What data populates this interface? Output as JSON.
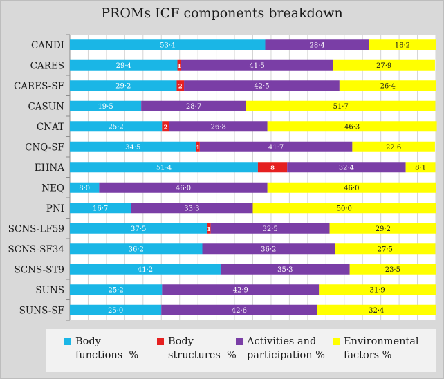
{
  "chart_data": {
    "type": "bar",
    "stacked": true,
    "orientation": "horizontal",
    "title": "PROMs ICF components breakdown",
    "xlim": [
      0,
      100
    ],
    "grid": true,
    "legend_position": "bottom",
    "categories": [
      "CANDI",
      "CARES",
      "CARES-SF",
      "CASUN",
      "CNAT",
      "CNQ-SF",
      "EHNA",
      "NEQ",
      "PNI",
      "SCNS-LF59",
      "SCNS-SF34",
      "SCNS-ST9",
      "SUNS",
      "SUNS-SF"
    ],
    "series": [
      {
        "name": "Body functions %",
        "color": "#1ab6e6",
        "values": [
          53.4,
          29.4,
          29.2,
          19.5,
          25.2,
          34.5,
          51.4,
          8.0,
          16.7,
          37.5,
          36.2,
          41.2,
          25.2,
          25.0
        ],
        "labels": [
          "53·4",
          "29·4",
          "29·2",
          "19·5",
          "25·2",
          "34·5",
          "51·4",
          "8·0",
          "16·7",
          "37·5",
          "36·2",
          "41·2",
          "25·2",
          "25·0"
        ]
      },
      {
        "name": "Body structures %",
        "color": "#e52020",
        "values": [
          0,
          1,
          2,
          0,
          2,
          1,
          8,
          0,
          0,
          1,
          0,
          0,
          0,
          0
        ],
        "labels": [
          "",
          "1",
          "2",
          "",
          "2",
          "1",
          "8",
          "",
          "",
          "1",
          "",
          "",
          "",
          ""
        ]
      },
      {
        "name": "Activities and participation %",
        "color": "#7a3ea6",
        "values": [
          28.4,
          41.5,
          42.5,
          28.7,
          26.8,
          41.7,
          32.4,
          46.0,
          33.3,
          32.5,
          36.2,
          35.3,
          42.9,
          42.6
        ],
        "labels": [
          "28·4",
          "41·5",
          "42·5",
          "28·7",
          "26·8",
          "41·7",
          "32·4",
          "46·0",
          "33·3",
          "32·5",
          "36·2",
          "35·3",
          "42·9",
          "42·6"
        ]
      },
      {
        "name": "Environmental factors %",
        "color": "#ffff00",
        "values": [
          18.2,
          27.9,
          26.4,
          51.7,
          46.3,
          22.6,
          8.1,
          46.0,
          50.0,
          29.2,
          27.5,
          23.5,
          31.9,
          32.4
        ],
        "labels": [
          "18·2",
          "27·9",
          "26·4",
          "51·7",
          "46·3",
          "22·6",
          "8·1",
          "46·0",
          "50·0",
          "29·2",
          "27·5",
          "23·5",
          "31·9",
          "32·4"
        ]
      }
    ]
  },
  "legend": [
    {
      "label": "Body\nfunctions  %",
      "color": "#1ab6e6"
    },
    {
      "label": "Body\nstructures  %",
      "color": "#e52020"
    },
    {
      "label": "Activities and\nparticipation %",
      "color": "#7a3ea6"
    },
    {
      "label": "Environmental\nfactors %",
      "color": "#ffff00"
    }
  ]
}
